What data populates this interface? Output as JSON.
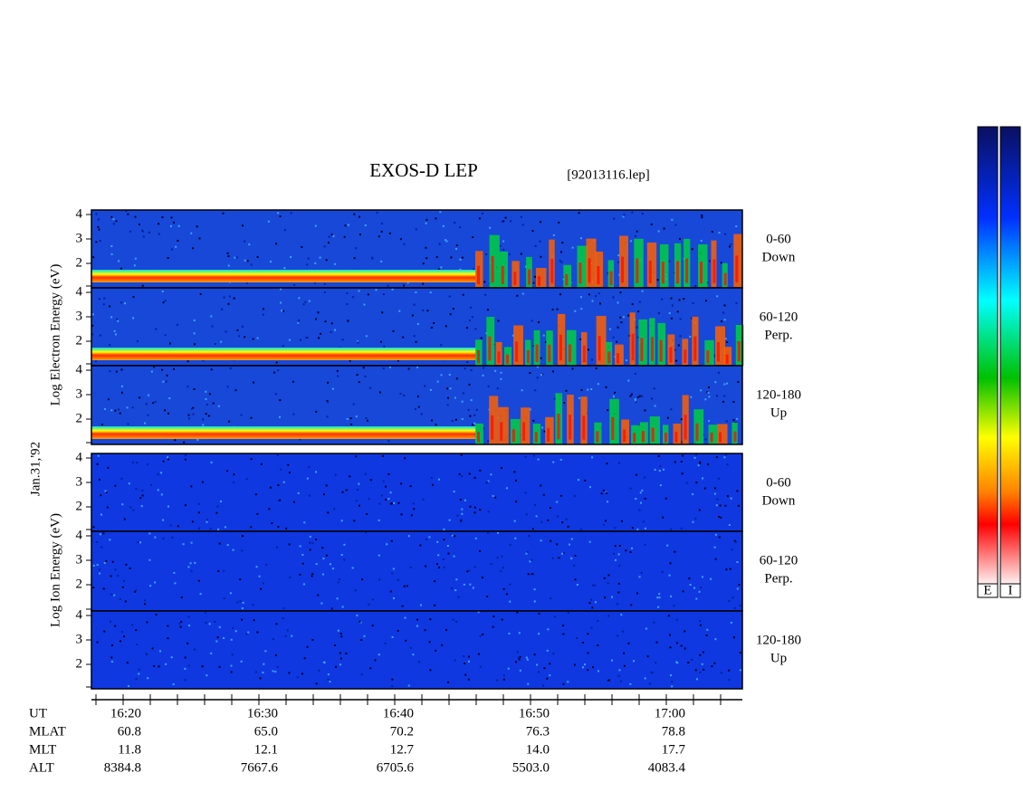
{
  "title": "EXOS-D LEP",
  "file": "[92013116.lep]",
  "date": "Jan.31,'92",
  "electron_axis": "Log Electron Energy (eV)",
  "ion_axis": "Log Ion Energy (eV)",
  "panels": [
    {
      "angle": "0-60",
      "direction": "Down",
      "ticks": [
        "4",
        "3",
        "2"
      ]
    },
    {
      "angle": "60-120",
      "direction": "Perp.",
      "ticks": [
        "4",
        "3",
        "2"
      ]
    },
    {
      "angle": "120-180",
      "direction": "Up",
      "ticks": [
        "4",
        "3",
        "2"
      ]
    },
    {
      "angle": "0-60",
      "direction": "Down",
      "ticks": [
        "4",
        "3",
        "2"
      ]
    },
    {
      "angle": "60-120",
      "direction": "Perp.",
      "ticks": [
        "4",
        "3",
        "2"
      ]
    },
    {
      "angle": "120-180",
      "direction": "Up",
      "ticks": [
        "4",
        "3",
        "2"
      ]
    }
  ],
  "time_axis": {
    "rows": [
      {
        "label": "UT",
        "values": [
          "16:20",
          "16:30",
          "16:40",
          "16:50",
          "17:00"
        ]
      },
      {
        "label": "MLAT",
        "values": [
          "60.8",
          "65.0",
          "70.2",
          "76.3",
          "78.8"
        ]
      },
      {
        "label": "MLT",
        "values": [
          "11.8",
          "12.1",
          "12.7",
          "14.0",
          "17.7"
        ]
      },
      {
        "label": "ALT",
        "values": [
          "8384.8",
          "7667.6",
          "6705.6",
          "5503.0",
          "4083.4"
        ]
      }
    ]
  },
  "colorbars": [
    "E",
    "I"
  ]
}
